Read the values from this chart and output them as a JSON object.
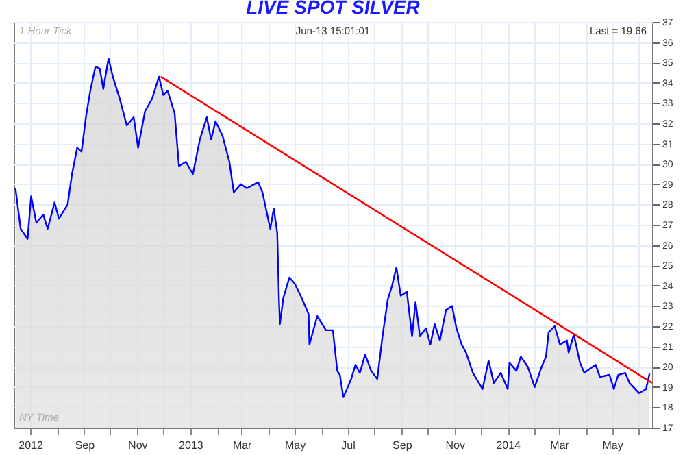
{
  "chart_data": {
    "type": "area",
    "title": "LIVE SPOT SILVER",
    "annotations": [
      "1 Hour Tick",
      "Jun-13 15:01:01",
      "Last = 19.66",
      "NY Time"
    ],
    "xlim": [
      "2012-06-12",
      "2014-06-16"
    ],
    "xticks": [
      {
        "value": "2012-07-01",
        "label": "2012"
      },
      {
        "value": "2012-08-01",
        "label": null
      },
      {
        "value": "2012-09-01",
        "label": "Sep"
      },
      {
        "value": "2012-10-01",
        "label": null
      },
      {
        "value": "2012-11-01",
        "label": "Nov"
      },
      {
        "value": "2012-12-01",
        "label": null
      },
      {
        "value": "2013-01-01",
        "label": "2013"
      },
      {
        "value": "2013-02-01",
        "label": null
      },
      {
        "value": "2013-03-01",
        "label": "Mar"
      },
      {
        "value": "2013-04-01",
        "label": null
      },
      {
        "value": "2013-05-01",
        "label": "May"
      },
      {
        "value": "2013-06-01",
        "label": null
      },
      {
        "value": "2013-07-01",
        "label": "Jul"
      },
      {
        "value": "2013-08-01",
        "label": null
      },
      {
        "value": "2013-09-01",
        "label": "Sep"
      },
      {
        "value": "2013-10-01",
        "label": null
      },
      {
        "value": "2013-11-01",
        "label": "Nov"
      },
      {
        "value": "2013-12-01",
        "label": null
      },
      {
        "value": "2014-01-01",
        "label": "2014"
      },
      {
        "value": "2014-02-01",
        "label": null
      },
      {
        "value": "2014-03-01",
        "label": "Mar"
      },
      {
        "value": "2014-04-01",
        "label": null
      },
      {
        "value": "2014-05-01",
        "label": "May"
      },
      {
        "value": "2014-06-01",
        "label": null
      }
    ],
    "ylim": [
      17,
      37
    ],
    "yticks": [
      17,
      18,
      19,
      20,
      21,
      22,
      23,
      24,
      25,
      26,
      27,
      28,
      29,
      30,
      31,
      32,
      33,
      34,
      35,
      36,
      37
    ],
    "grid": true,
    "marker": "none",
    "series": [
      {
        "color": "#0000ff",
        "x": [
          "2012-06-14",
          "2012-06-20",
          "2012-06-28",
          "2012-07-02",
          "2012-07-08",
          "2012-07-16",
          "2012-07-21",
          "2012-07-29",
          "2012-08-03",
          "2012-08-13",
          "2012-08-18",
          "2012-08-24",
          "2012-08-29",
          "2012-09-03",
          "2012-09-08",
          "2012-09-14",
          "2012-09-19",
          "2012-09-23",
          "2012-09-29",
          "2012-10-04",
          "2012-10-12",
          "2012-10-20",
          "2012-10-28",
          "2012-11-02",
          "2012-11-10",
          "2012-11-18",
          "2012-11-26",
          "2012-12-01",
          "2012-12-06",
          "2012-12-14",
          "2012-12-19",
          "2012-12-27",
          "2013-01-04",
          "2013-01-12",
          "2013-01-20",
          "2013-01-25",
          "2013-01-30",
          "2013-02-07",
          "2013-02-15",
          "2013-02-20",
          "2013-02-28",
          "2013-03-07",
          "2013-03-20",
          "2013-03-25",
          "2013-04-03",
          "2013-04-07",
          "2013-04-11",
          "2013-04-13",
          "2013-04-14",
          "2013-04-18",
          "2013-04-25",
          "2013-05-01",
          "2013-05-09",
          "2013-05-17",
          "2013-05-18",
          "2013-05-27",
          "2013-06-06",
          "2013-06-14",
          "2013-06-19",
          "2013-06-22",
          "2013-06-26",
          "2013-07-05",
          "2013-07-10",
          "2013-07-15",
          "2013-07-21",
          "2013-07-28",
          "2013-08-04",
          "2013-08-10",
          "2013-08-16",
          "2013-08-21",
          "2013-08-26",
          "2013-08-31",
          "2013-09-07",
          "2013-09-13",
          "2013-09-17",
          "2013-09-22",
          "2013-09-29",
          "2013-10-04",
          "2013-10-09",
          "2013-10-15",
          "2013-10-22",
          "2013-10-29",
          "2013-11-03",
          "2013-11-09",
          "2013-11-14",
          "2013-11-22",
          "2013-12-03",
          "2013-12-10",
          "2013-12-16",
          "2013-12-24",
          "2014-01-01",
          "2014-01-03",
          "2014-01-11",
          "2014-01-16",
          "2014-01-24",
          "2014-02-01",
          "2014-02-09",
          "2014-02-14",
          "2014-02-17",
          "2014-02-24",
          "2014-03-02",
          "2014-03-10",
          "2014-03-12",
          "2014-03-18",
          "2014-03-25",
          "2014-03-30",
          "2014-04-12",
          "2014-04-17",
          "2014-04-28",
          "2014-05-03",
          "2014-05-08",
          "2014-05-16",
          "2014-05-21",
          "2014-06-01",
          "2014-06-09",
          "2014-06-13"
        ],
        "values": [
          28.8,
          26.8,
          26.3,
          28.4,
          27.1,
          27.5,
          26.8,
          28.1,
          27.3,
          28.0,
          29.5,
          30.8,
          30.6,
          32.3,
          33.6,
          34.8,
          34.7,
          33.7,
          35.2,
          34.3,
          33.2,
          31.9,
          32.3,
          30.8,
          32.6,
          33.2,
          34.3,
          33.4,
          33.6,
          32.5,
          29.9,
          30.1,
          29.5,
          31.2,
          32.3,
          31.2,
          32.1,
          31.4,
          30.1,
          28.6,
          29.0,
          28.8,
          29.1,
          28.6,
          26.8,
          27.8,
          26.6,
          23.3,
          22.1,
          23.4,
          24.4,
          24.1,
          23.4,
          22.6,
          21.1,
          22.5,
          21.8,
          21.8,
          19.8,
          19.6,
          18.5,
          19.4,
          20.1,
          19.7,
          20.6,
          19.8,
          19.4,
          21.5,
          23.3,
          24.0,
          24.9,
          23.5,
          23.7,
          21.5,
          23.2,
          21.5,
          21.9,
          21.1,
          22.1,
          21.3,
          22.8,
          23.0,
          21.9,
          21.1,
          20.7,
          19.7,
          18.9,
          20.3,
          19.2,
          19.7,
          18.9,
          20.2,
          19.8,
          20.5,
          20.0,
          19.0,
          20.0,
          20.5,
          21.7,
          22.0,
          21.1,
          21.3,
          20.7,
          21.6,
          20.2,
          19.7,
          20.1,
          19.5,
          19.6,
          18.9,
          19.6,
          19.7,
          19.2,
          18.7,
          18.9,
          19.66
        ]
      },
      {
        "type": "line",
        "color": "#ff0000",
        "x": [
          "2012-11-28",
          "2014-02-24",
          "2014-06-16"
        ],
        "values": [
          34.3,
          22.2,
          19.2
        ]
      }
    ]
  }
}
